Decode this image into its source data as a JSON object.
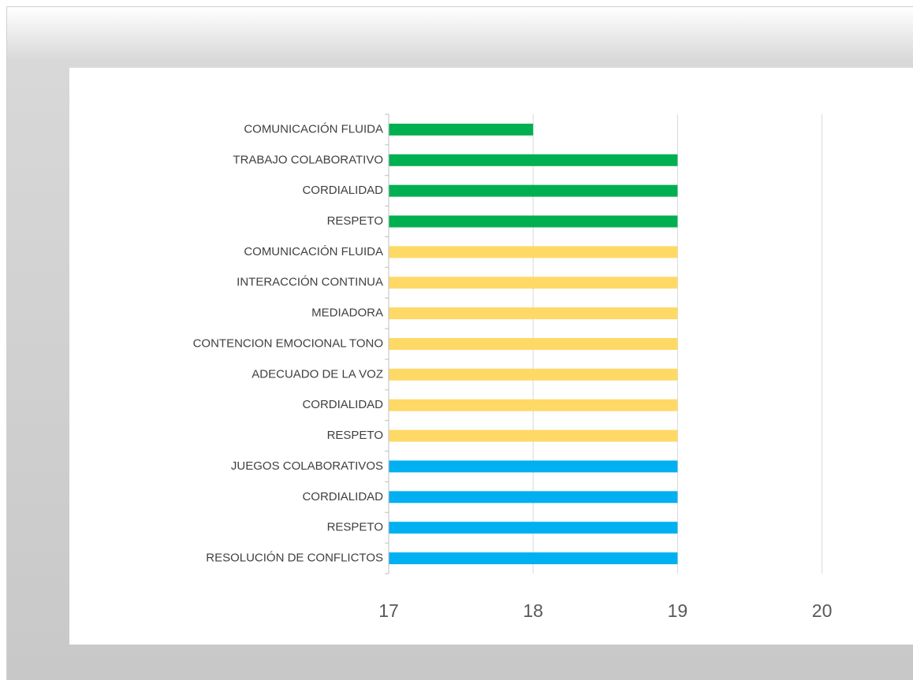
{
  "chart_data": {
    "type": "barh",
    "categories": [
      "COMUNICACIÓN FLUIDA",
      "TRABAJO COLABORATIVO",
      "CORDIALIDAD",
      "RESPETO",
      "COMUNICACIÓN FLUIDA",
      "INTERACCIÓN CONTINUA",
      "MEDIADORA",
      "CONTENCION EMOCIONAL TONO",
      "ADECUADO DE LA VOZ",
      "CORDIALIDAD",
      "RESPETO",
      "JUEGOS COLABORATIVOS",
      "CORDIALIDAD",
      "RESPETO",
      "RESOLUCIÓN DE CONFLICTOS"
    ],
    "values": [
      18,
      19,
      19,
      19,
      19,
      19,
      19,
      19,
      19,
      19,
      19,
      19,
      19,
      19,
      19
    ],
    "colors": [
      "#00b050",
      "#00b050",
      "#00b050",
      "#00b050",
      "#ffd966",
      "#ffd966",
      "#ffd966",
      "#ffd966",
      "#ffd966",
      "#ffd966",
      "#ffd966",
      "#00b0f0",
      "#00b0f0",
      "#00b0f0",
      "#00b0f0"
    ],
    "xlim": [
      17,
      20.63
    ],
    "xticks": [
      17,
      18,
      19,
      20
    ],
    "grid": true
  }
}
